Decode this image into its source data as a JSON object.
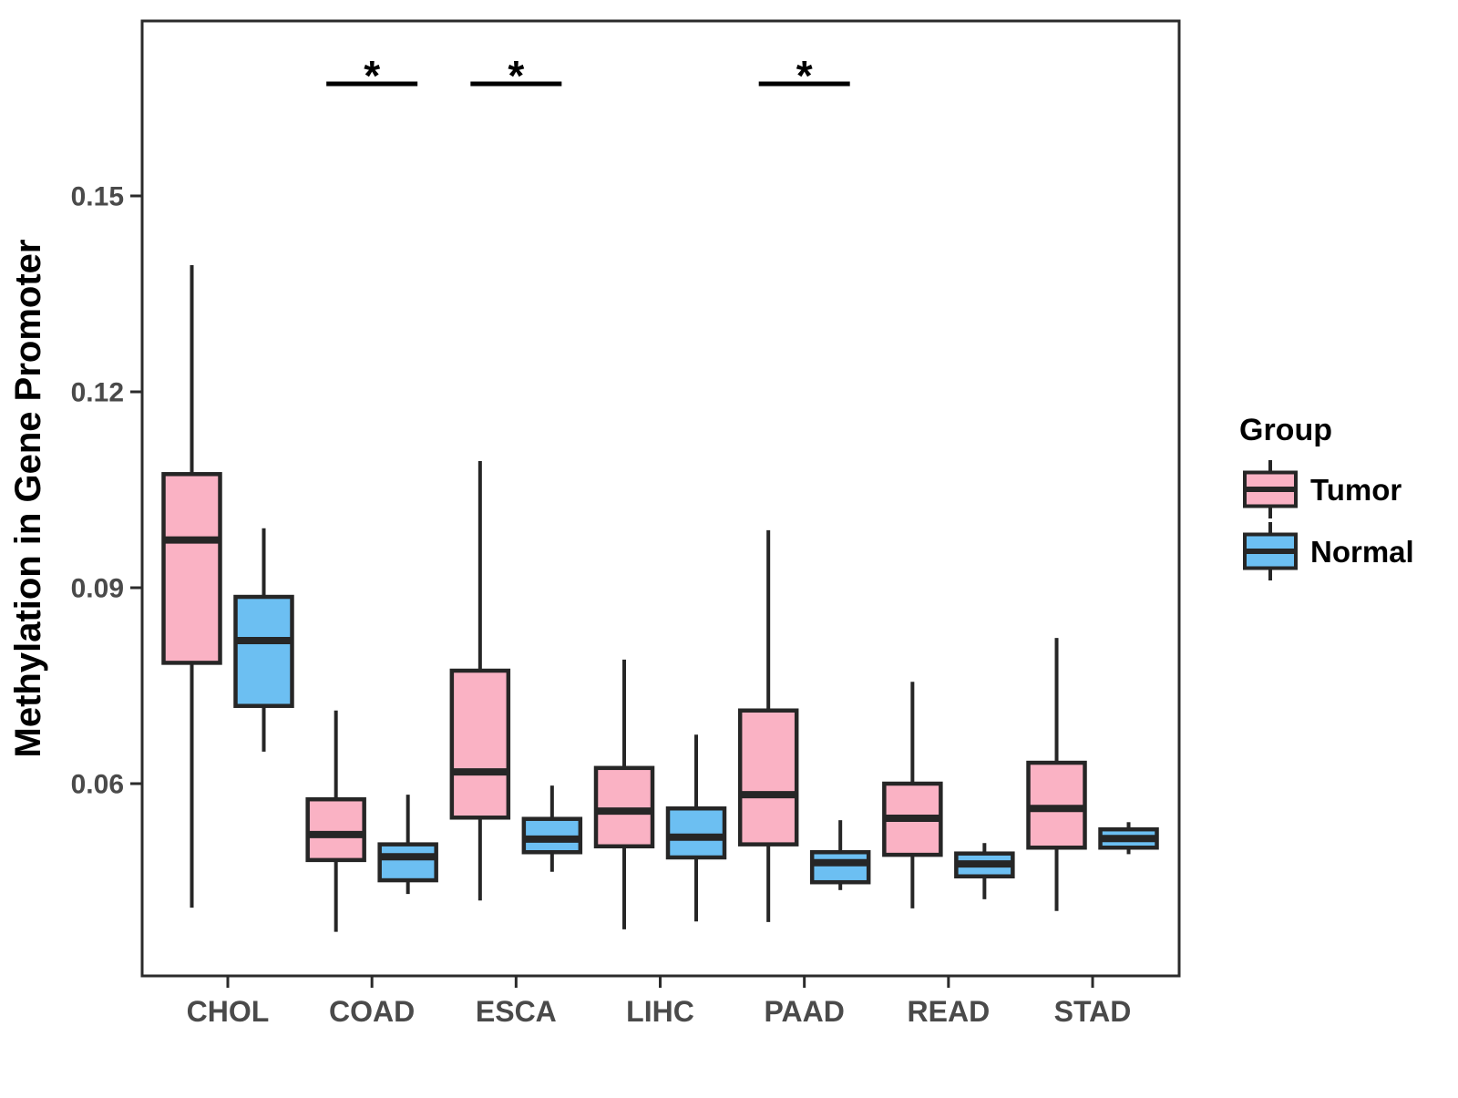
{
  "figure": {
    "background": "#ffffff",
    "panel_border_color": "#2b2b2b",
    "box_line_color": "#262626",
    "tick_color": "#2b2b2b",
    "axis_text_color": "#4a4a4a",
    "title_text_color": "#000000"
  },
  "legend": {
    "title": "Group",
    "entries": [
      {
        "label": "Tumor",
        "color": "#FAB2C4"
      },
      {
        "label": "Normal",
        "color": "#6CBFF2"
      }
    ]
  },
  "chart_data": {
    "type": "boxplot",
    "title": "",
    "xlabel": "",
    "ylabel": "Methylation in Gene Promoter",
    "ylim": [
      0.031,
      0.177
    ],
    "yticks": [
      0.06,
      0.09,
      0.12,
      0.15
    ],
    "ytick_labels": [
      "0.06",
      "0.09",
      "0.12",
      "0.15"
    ],
    "grid": false,
    "legend_position": "right",
    "categories": [
      "CHOL",
      "COAD",
      "ESCA",
      "LIHC",
      "PAAD",
      "READ",
      "STAD"
    ],
    "series": [
      {
        "name": "Tumor",
        "color": "#FAB2C4",
        "boxes": [
          {
            "category": "CHOL",
            "whisker_low": 0.041,
            "q1": 0.0785,
            "median": 0.0973,
            "q3": 0.1074,
            "whisker_high": 0.1394
          },
          {
            "category": "COAD",
            "whisker_low": 0.0373,
            "q1": 0.0483,
            "median": 0.0522,
            "q3": 0.0576,
            "whisker_high": 0.0712
          },
          {
            "category": "ESCA",
            "whisker_low": 0.0421,
            "q1": 0.0548,
            "median": 0.0618,
            "q3": 0.0773,
            "whisker_high": 0.1094
          },
          {
            "category": "LIHC",
            "whisker_low": 0.0377,
            "q1": 0.0504,
            "median": 0.0558,
            "q3": 0.0624,
            "whisker_high": 0.079
          },
          {
            "category": "PAAD",
            "whisker_low": 0.0388,
            "q1": 0.0507,
            "median": 0.0583,
            "q3": 0.0712,
            "whisker_high": 0.0988
          },
          {
            "category": "READ",
            "whisker_low": 0.0409,
            "q1": 0.0491,
            "median": 0.0547,
            "q3": 0.06,
            "whisker_high": 0.0756
          },
          {
            "category": "STAD",
            "whisker_low": 0.0405,
            "q1": 0.0502,
            "median": 0.0562,
            "q3": 0.0632,
            "whisker_high": 0.0823
          }
        ]
      },
      {
        "name": "Normal",
        "color": "#6CBFF2",
        "boxes": [
          {
            "category": "CHOL",
            "whisker_low": 0.0649,
            "q1": 0.0719,
            "median": 0.0819,
            "q3": 0.0886,
            "whisker_high": 0.0991
          },
          {
            "category": "COAD",
            "whisker_low": 0.0431,
            "q1": 0.0452,
            "median": 0.0488,
            "q3": 0.0507,
            "whisker_high": 0.0583
          },
          {
            "category": "ESCA",
            "whisker_low": 0.0465,
            "q1": 0.0495,
            "median": 0.0515,
            "q3": 0.0546,
            "whisker_high": 0.0597
          },
          {
            "category": "LIHC",
            "whisker_low": 0.0389,
            "q1": 0.0487,
            "median": 0.0518,
            "q3": 0.0562,
            "whisker_high": 0.0675
          },
          {
            "category": "PAAD",
            "whisker_low": 0.0437,
            "q1": 0.0449,
            "median": 0.0479,
            "q3": 0.0495,
            "whisker_high": 0.0544
          },
          {
            "category": "READ",
            "whisker_low": 0.0423,
            "q1": 0.0458,
            "median": 0.0477,
            "q3": 0.0493,
            "whisker_high": 0.0509
          },
          {
            "category": "STAD",
            "whisker_low": 0.0492,
            "q1": 0.0502,
            "median": 0.0516,
            "q3": 0.053,
            "whisker_high": 0.0541
          }
        ]
      }
    ],
    "significance_annotations": [
      {
        "category": "COAD",
        "label": "*"
      },
      {
        "category": "ESCA",
        "label": "*"
      },
      {
        "category": "PAAD",
        "label": "*"
      }
    ]
  }
}
